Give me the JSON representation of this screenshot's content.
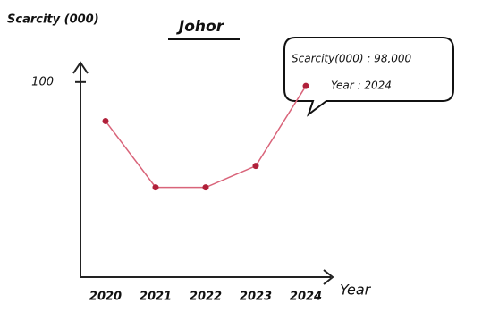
{
  "chart_data": {
    "type": "line",
    "title": "Johor",
    "y_label": "Scarcity (000)",
    "x_label": "Year",
    "categories": [
      "2020",
      "2021",
      "2022",
      "2023",
      "2024"
    ],
    "series": [
      {
        "name": "Scarcity",
        "color": "#d9647a",
        "values": [
          80,
          46,
          46,
          57,
          98
        ]
      }
    ],
    "ylim": [
      0,
      110
    ],
    "yticks": [
      100
    ],
    "annotations": [
      "Scarcity(000) : 98,000",
      "Year : 2024"
    ]
  }
}
